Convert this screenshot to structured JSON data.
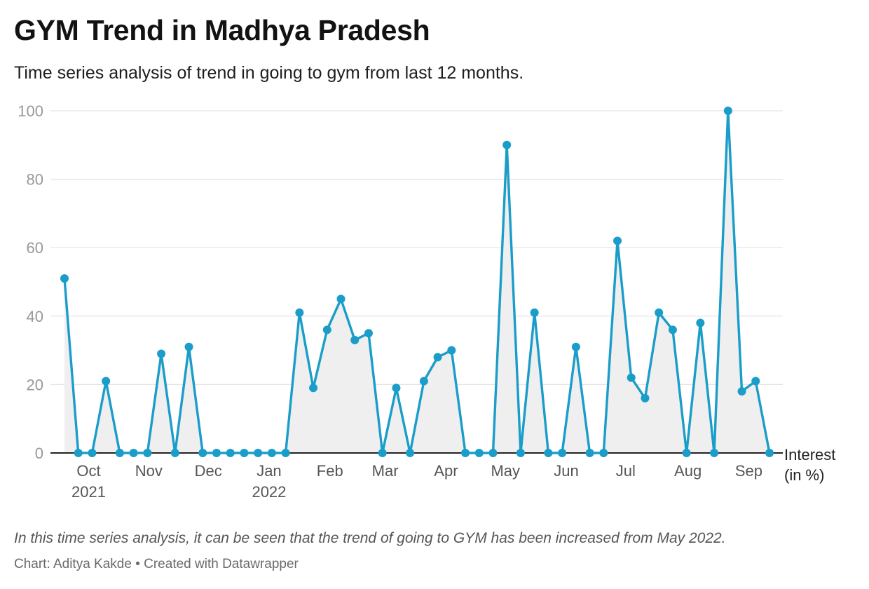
{
  "title": "GYM Trend in Madhya Pradesh",
  "subtitle": "Time series analysis of trend in going to gym from last 12 months.",
  "note": "In this time series analysis, it can be seen that the trend of going to GYM has been increased from May 2022.",
  "footer": "Chart: Aditya Kakde • Created with Datawrapper",
  "colors": {
    "line": "#1a9dc9",
    "area": "#efefef",
    "grid": "#e3e3e3",
    "baseline": "#222222"
  },
  "chart_data": {
    "type": "area",
    "title": "GYM Trend in Madhya Pradesh",
    "subtitle": "Time series analysis of trend in going to gym from last 12 months.",
    "xlabel": "",
    "ylabel": "Interest (in %)",
    "ylabel_lines": [
      "Interest",
      "(in %)"
    ],
    "ylim": [
      0,
      100
    ],
    "yticks": [
      0,
      20,
      40,
      60,
      80,
      100
    ],
    "grid": true,
    "markers": true,
    "x_ticks": [
      {
        "label": "Oct",
        "label2": "2021",
        "pos": 1.75
      },
      {
        "label": "Nov",
        "label2": "",
        "pos": 6.1
      },
      {
        "label": "Dec",
        "label2": "",
        "pos": 10.4
      },
      {
        "label": "Jan",
        "label2": "2022",
        "pos": 14.8
      },
      {
        "label": "Feb",
        "label2": "",
        "pos": 19.2
      },
      {
        "label": "Mar",
        "label2": "",
        "pos": 23.2
      },
      {
        "label": "Apr",
        "label2": "",
        "pos": 27.6
      },
      {
        "label": "May",
        "label2": "",
        "pos": 31.9
      },
      {
        "label": "Jun",
        "label2": "",
        "pos": 36.3
      },
      {
        "label": "Jul",
        "label2": "",
        "pos": 40.6
      },
      {
        "label": "Aug",
        "label2": "",
        "pos": 45.1
      },
      {
        "label": "Sep",
        "label2": "",
        "pos": 49.5
      }
    ],
    "series": [
      {
        "values": [
          51,
          0,
          0,
          21,
          0,
          0,
          0,
          29,
          0,
          31,
          0,
          0,
          0,
          0,
          0,
          0,
          0,
          41,
          19,
          36,
          45,
          33,
          35,
          0,
          19,
          0,
          21,
          28,
          30,
          0,
          0,
          0,
          90,
          0,
          41,
          0,
          0,
          31,
          0,
          0,
          62,
          22,
          16,
          41,
          36,
          0,
          38,
          0,
          100,
          18,
          21,
          0
        ]
      }
    ]
  }
}
